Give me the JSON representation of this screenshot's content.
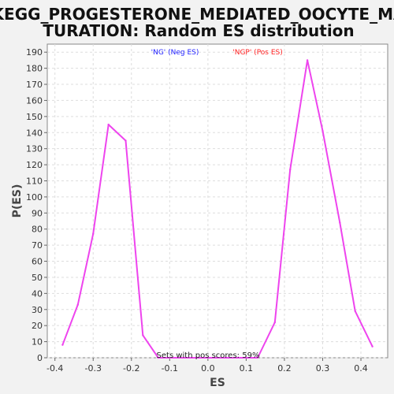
{
  "chart_data": {
    "type": "line",
    "title_line1": "KEGG_PROGESTERONE_MEDIATED_OOCYTE_MA",
    "title_line2": "TURATION: Random ES distribution",
    "xlabel": "ES",
    "ylabel": "P(ES)",
    "xlim": [
      -0.42,
      0.47
    ],
    "ylim": [
      0,
      195
    ],
    "x_ticks": [
      -0.4,
      -0.3,
      -0.2,
      -0.1,
      0.0,
      0.1,
      0.2,
      0.3,
      0.4
    ],
    "x_tick_labels": [
      "-0.4",
      "-0.3",
      "-0.2",
      "-0.1",
      "0.0",
      "0.1",
      "0.2",
      "0.3",
      "0.4"
    ],
    "y_ticks": [
      0,
      10,
      20,
      30,
      40,
      50,
      60,
      70,
      80,
      90,
      100,
      110,
      120,
      130,
      140,
      150,
      160,
      170,
      180,
      190
    ],
    "grid": true,
    "legend": {
      "placement": "top",
      "entries": [
        {
          "label": "'NG' (Neg ES)",
          "color": "#2222ff"
        },
        {
          "label": "'NGP' (Pos ES)",
          "color": "#ff2222"
        }
      ]
    },
    "annotation": "Sets with pos scores: 59%",
    "line_color": "#ee44ee",
    "series": [
      {
        "x": [
          -0.38,
          -0.34,
          -0.3,
          -0.26,
          -0.215,
          -0.17,
          -0.13,
          0.13,
          0.175,
          0.215,
          0.26,
          0.3,
          0.345,
          0.385,
          0.43
        ],
        "values": [
          8,
          33,
          77,
          145,
          135,
          14,
          0,
          0,
          22,
          117,
          185,
          141,
          84,
          29,
          7
        ]
      }
    ]
  }
}
